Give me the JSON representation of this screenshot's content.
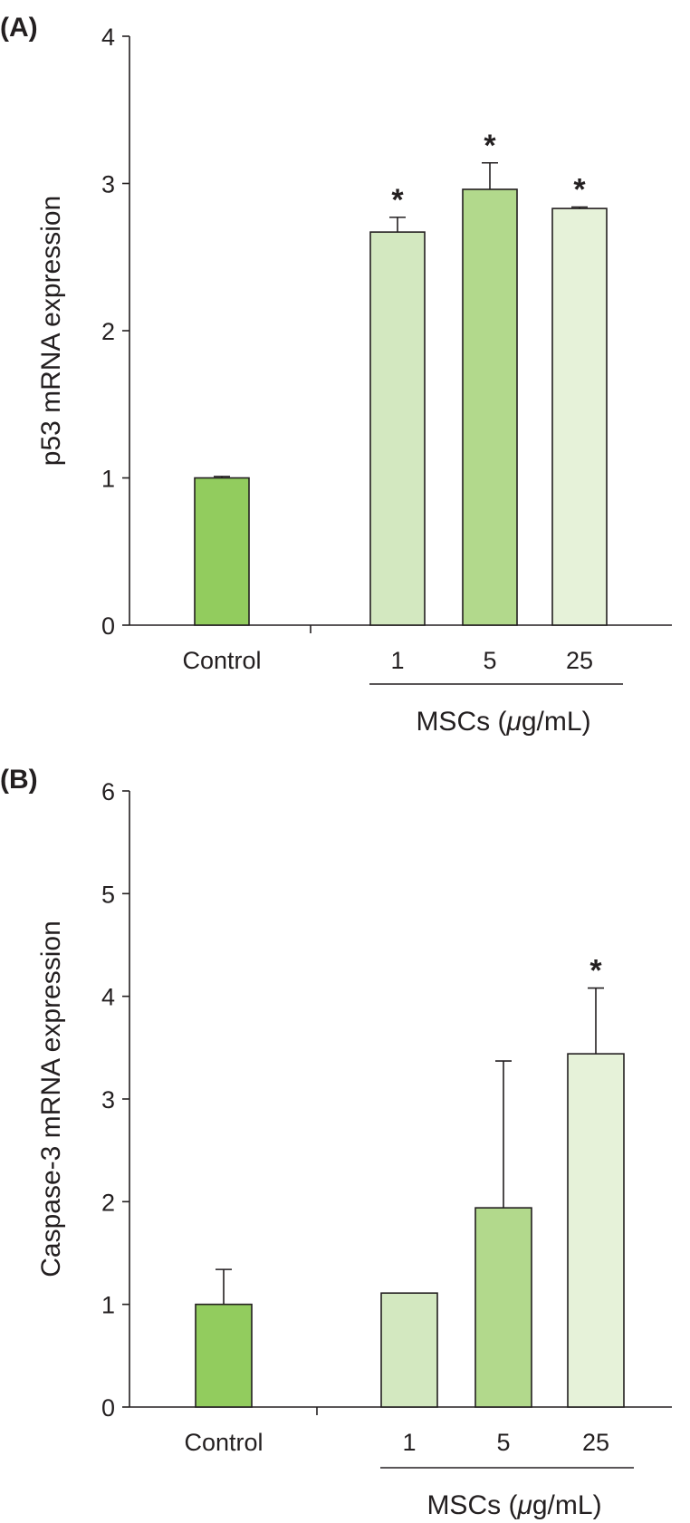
{
  "chart_data": [
    {
      "type": "bar",
      "panel_label": "(A)",
      "ylabel": "p53 mRNA expression",
      "ylim": [
        0,
        4
      ],
      "yticks": [
        "0",
        "1",
        "2",
        "3",
        "4"
      ],
      "categories": [
        "Control",
        "1",
        "5",
        "25"
      ],
      "values": [
        1.0,
        2.67,
        2.96,
        2.83
      ],
      "errors": [
        0.01,
        0.1,
        0.18,
        0.01
      ],
      "significance": [
        "",
        "*",
        "*",
        "*"
      ],
      "colors": [
        "#92cc5e",
        "#d3e8c0",
        "#b2d98c",
        "#e6f2d9"
      ],
      "group_label_prefix": "MSCs (",
      "group_label_mu": "μ",
      "group_label_suffix": "g/mL)",
      "grid": false
    },
    {
      "type": "bar",
      "panel_label": "(B)",
      "ylabel": "Caspase-3 mRNA expression",
      "ylim": [
        0,
        6
      ],
      "yticks": [
        "0",
        "1",
        "2",
        "3",
        "4",
        "5",
        "6"
      ],
      "categories": [
        "Control",
        "1",
        "5",
        "25"
      ],
      "values": [
        1.0,
        1.11,
        1.94,
        3.44
      ],
      "errors": [
        0.34,
        0,
        1.43,
        0.64
      ],
      "significance": [
        "",
        "",
        "",
        "*"
      ],
      "colors": [
        "#92cc5e",
        "#d3e8c0",
        "#b2d98c",
        "#e6f2d9"
      ],
      "group_label_prefix": "MSCs (",
      "group_label_mu": "μ",
      "group_label_suffix": "g/mL)",
      "grid": false
    }
  ]
}
